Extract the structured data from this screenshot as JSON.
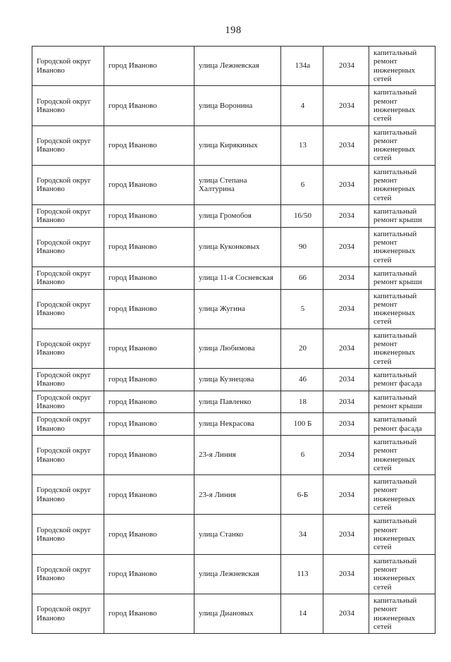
{
  "page": {
    "number": "198"
  },
  "table": {
    "fields": [
      "district",
      "city",
      "street",
      "house",
      "year",
      "work"
    ],
    "rows": [
      {
        "district": "Городской округ Иваново",
        "city": "город Иваново",
        "street": "улица Лежневская",
        "house": "134а",
        "year": "2034",
        "work": "капитальный ремонт инженерных сетей"
      },
      {
        "district": "Городской округ Иваново",
        "city": "город Иваново",
        "street": "улица Воронина",
        "house": "4",
        "year": "2034",
        "work": "капитальный ремонт инженерных сетей"
      },
      {
        "district": "Городской округ Иваново",
        "city": "город Иваново",
        "street": "улица Кирякиных",
        "house": "13",
        "year": "2034",
        "work": "капитальный ремонт инженерных сетей"
      },
      {
        "district": "Городской округ Иваново",
        "city": "город Иваново",
        "street": "улица Степана Халтурина",
        "house": "6",
        "year": "2034",
        "work": "капитальный ремонт инженерных сетей"
      },
      {
        "district": "Городской округ Иваново",
        "city": "город Иваново",
        "street": "улица Громобоя",
        "house": "16/50",
        "year": "2034",
        "work": "капитальный ремонт крыши"
      },
      {
        "district": "Городской округ Иваново",
        "city": "город Иваново",
        "street": "улица Куконковых",
        "house": "90",
        "year": "2034",
        "work": "капитальный ремонт инженерных сетей"
      },
      {
        "district": "Городской округ Иваново",
        "city": "город Иваново",
        "street": "улица 11-я Сосневская",
        "house": "66",
        "year": "2034",
        "work": "капитальный ремонт крыши"
      },
      {
        "district": "Городской округ Иваново",
        "city": "город Иваново",
        "street": "улица Жугина",
        "house": "5",
        "year": "2034",
        "work": "капитальный ремонт инженерных сетей"
      },
      {
        "district": "Городской округ Иваново",
        "city": "город Иваново",
        "street": "улица Любимова",
        "house": "20",
        "year": "2034",
        "work": "капитальный ремонт инженерных сетей"
      },
      {
        "district": "Городской округ Иваново",
        "city": "город Иваново",
        "street": "улица Кузнецова",
        "house": "46",
        "year": "2034",
        "work": "капитальный ремонт фасада"
      },
      {
        "district": "Городской округ Иваново",
        "city": "город Иваново",
        "street": "улица Павленко",
        "house": "18",
        "year": "2034",
        "work": "капитальный ремонт крыши"
      },
      {
        "district": "Городской округ Иваново",
        "city": "город Иваново",
        "street": "улица Некрасова",
        "house": "100 Б",
        "year": "2034",
        "work": "капитальный ремонт фасада"
      },
      {
        "district": "Городской округ Иваново",
        "city": "город Иваново",
        "street": "23-я Линия",
        "house": "6",
        "year": "2034",
        "work": "капитальный ремонт инженерных сетей"
      },
      {
        "district": "Городской округ Иваново",
        "city": "город Иваново",
        "street": "23-я Линия",
        "house": "6-Б",
        "year": "2034",
        "work": "капитальный ремонт инженерных сетей"
      },
      {
        "district": "Городской округ Иваново",
        "city": "город Иваново",
        "street": "улица Станко",
        "house": "34",
        "year": "2034",
        "work": "капитальный ремонт инженерных сетей"
      },
      {
        "district": "Городской округ Иваново",
        "city": "город Иваново",
        "street": "улица Лежневская",
        "house": "113",
        "year": "2034",
        "work": "капитальный ремонт инженерных сетей"
      },
      {
        "district": "Городской округ Иваново",
        "city": "город Иваново",
        "street": "улица Диановых",
        "house": "14",
        "year": "2034",
        "work": "капитальный ремонт инженерных сетей"
      }
    ]
  }
}
